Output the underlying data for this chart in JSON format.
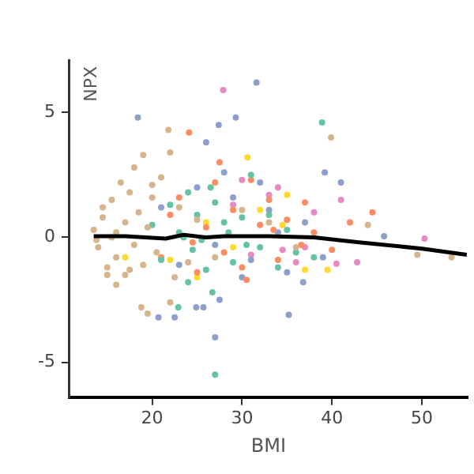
{
  "chart_data": {
    "type": "scatter",
    "xlabel": "BMI",
    "ylabel": "NPX",
    "xlim": [
      10.8,
      55.1
    ],
    "ylim": [
      -6.4,
      7.1
    ],
    "xticks": [
      20,
      30,
      40,
      50
    ],
    "yticks": [
      -5,
      0,
      5
    ],
    "grid": false,
    "legend": false,
    "marker": "circle",
    "series": [
      {
        "type": "line",
        "color": "#000000",
        "marker": "none",
        "x": [
          13.5,
          17,
          21.5,
          23.5,
          26,
          28,
          33,
          38,
          43,
          50,
          55
        ],
        "values": [
          0.05,
          0.05,
          -0.05,
          0.1,
          0.0,
          0.05,
          0.05,
          0.0,
          -0.2,
          -0.45,
          -0.7
        ]
      },
      {
        "color": "#d6b48c",
        "x": [
          13.5,
          14,
          14.5,
          15,
          15.5,
          16,
          16,
          16.5,
          17,
          17,
          17.5,
          18,
          18,
          18.5,
          19,
          19,
          19.5,
          20,
          20.5,
          21,
          21.8,
          22,
          22.5,
          23,
          24,
          25,
          18.8,
          19.5,
          15,
          14.5,
          16,
          17.5,
          20,
          22,
          39.9,
          49.5,
          53.3,
          44,
          36,
          33,
          30,
          27,
          13.8,
          15.5
        ],
        "values": [
          0.3,
          -0.4,
          0.8,
          -1.2,
          1.5,
          0.2,
          -0.8,
          2.2,
          0.6,
          -1.5,
          1.8,
          -0.3,
          2.8,
          1.0,
          -1.1,
          3.3,
          0.4,
          1.6,
          -0.6,
          2.4,
          4.3,
          3.4,
          -1.6,
          1.2,
          -1.0,
          0.7,
          -2.8,
          -3.05,
          -1.5,
          1.2,
          -1.9,
          -1.3,
          2.1,
          -2.6,
          4.0,
          -0.7,
          -0.8,
          0.5,
          -0.4,
          0.6,
          1.1,
          -0.8,
          -0.1,
          0.0
        ]
      },
      {
        "color": "#66c2a5",
        "x": [
          20,
          21,
          22,
          22.9,
          23,
          24,
          24.5,
          25,
          26,
          26.7,
          27,
          27,
          28,
          29,
          30,
          31,
          32,
          33,
          34,
          35,
          36,
          38.9,
          23.5,
          25.5,
          28.5,
          30.5,
          24,
          26.5,
          38
        ],
        "values": [
          0.5,
          -0.9,
          1.3,
          -2.8,
          0.2,
          1.8,
          -0.5,
          0.9,
          -1.3,
          -2.2,
          -5.5,
          1.4,
          0.6,
          -1.0,
          0.8,
          2.5,
          -0.4,
          0.9,
          -1.2,
          0.3,
          -0.6,
          4.6,
          0.0,
          -0.1,
          0.2,
          -0.3,
          -1.8,
          2.0,
          -0.8
        ]
      },
      {
        "color": "#fc8d62",
        "x": [
          21,
          22,
          23,
          24.1,
          25,
          26,
          27,
          28,
          29,
          30,
          31,
          32,
          33,
          34,
          35,
          36.6,
          37,
          38,
          40,
          42,
          44.5,
          24.5,
          27.5,
          30.5,
          33.5
        ],
        "values": [
          -0.8,
          0.9,
          1.6,
          4.2,
          -1.4,
          0.4,
          2.2,
          -0.6,
          1.1,
          -1.2,
          2.3,
          0.5,
          1.5,
          -0.9,
          0.7,
          -0.3,
          1.4,
          0.2,
          -0.5,
          0.6,
          1.0,
          -0.2,
          3.0,
          -1.7,
          0.3
        ]
      },
      {
        "color": "#8da0cb",
        "x": [
          18.4,
          20.7,
          22.5,
          24.9,
          25.7,
          26,
          27,
          27.4,
          27.5,
          29.3,
          31.6,
          35.2,
          36.8,
          39.2,
          41,
          45.8,
          21,
          23,
          25,
          27,
          29,
          31,
          33,
          35,
          37,
          39,
          28,
          32,
          30,
          34
        ],
        "values": [
          4.8,
          -3.2,
          -3.2,
          -2.8,
          -2.8,
          3.8,
          -4.0,
          4.5,
          -2.5,
          4.8,
          6.2,
          -3.1,
          -1.8,
          2.6,
          2.2,
          0.05,
          1.2,
          -1.1,
          2.0,
          -0.3,
          1.6,
          -0.9,
          1.1,
          -1.4,
          0.6,
          -0.8,
          2.6,
          2.2,
          -1.6,
          0.2
        ]
      },
      {
        "color": "#e78ac3",
        "x": [
          27.9,
          29,
          31,
          33,
          34.5,
          36,
          38,
          40.5,
          41,
          42.8,
          50.3,
          34,
          37,
          30
        ],
        "values": [
          5.9,
          1.3,
          -0.7,
          1.7,
          -0.5,
          -1.0,
          1.0,
          -1.05,
          1.5,
          -1.0,
          -0.05,
          2.0,
          -0.4,
          2.3
        ]
      },
      {
        "color": "#ffd92f",
        "x": [
          30.6,
          22,
          26,
          29,
          32,
          34.5,
          37,
          39.5,
          17,
          25,
          35
        ],
        "values": [
          3.2,
          -0.9,
          0.6,
          -0.4,
          1.1,
          0.5,
          -1.3,
          -1.3,
          -0.8,
          -1.6,
          1.7
        ]
      }
    ]
  }
}
